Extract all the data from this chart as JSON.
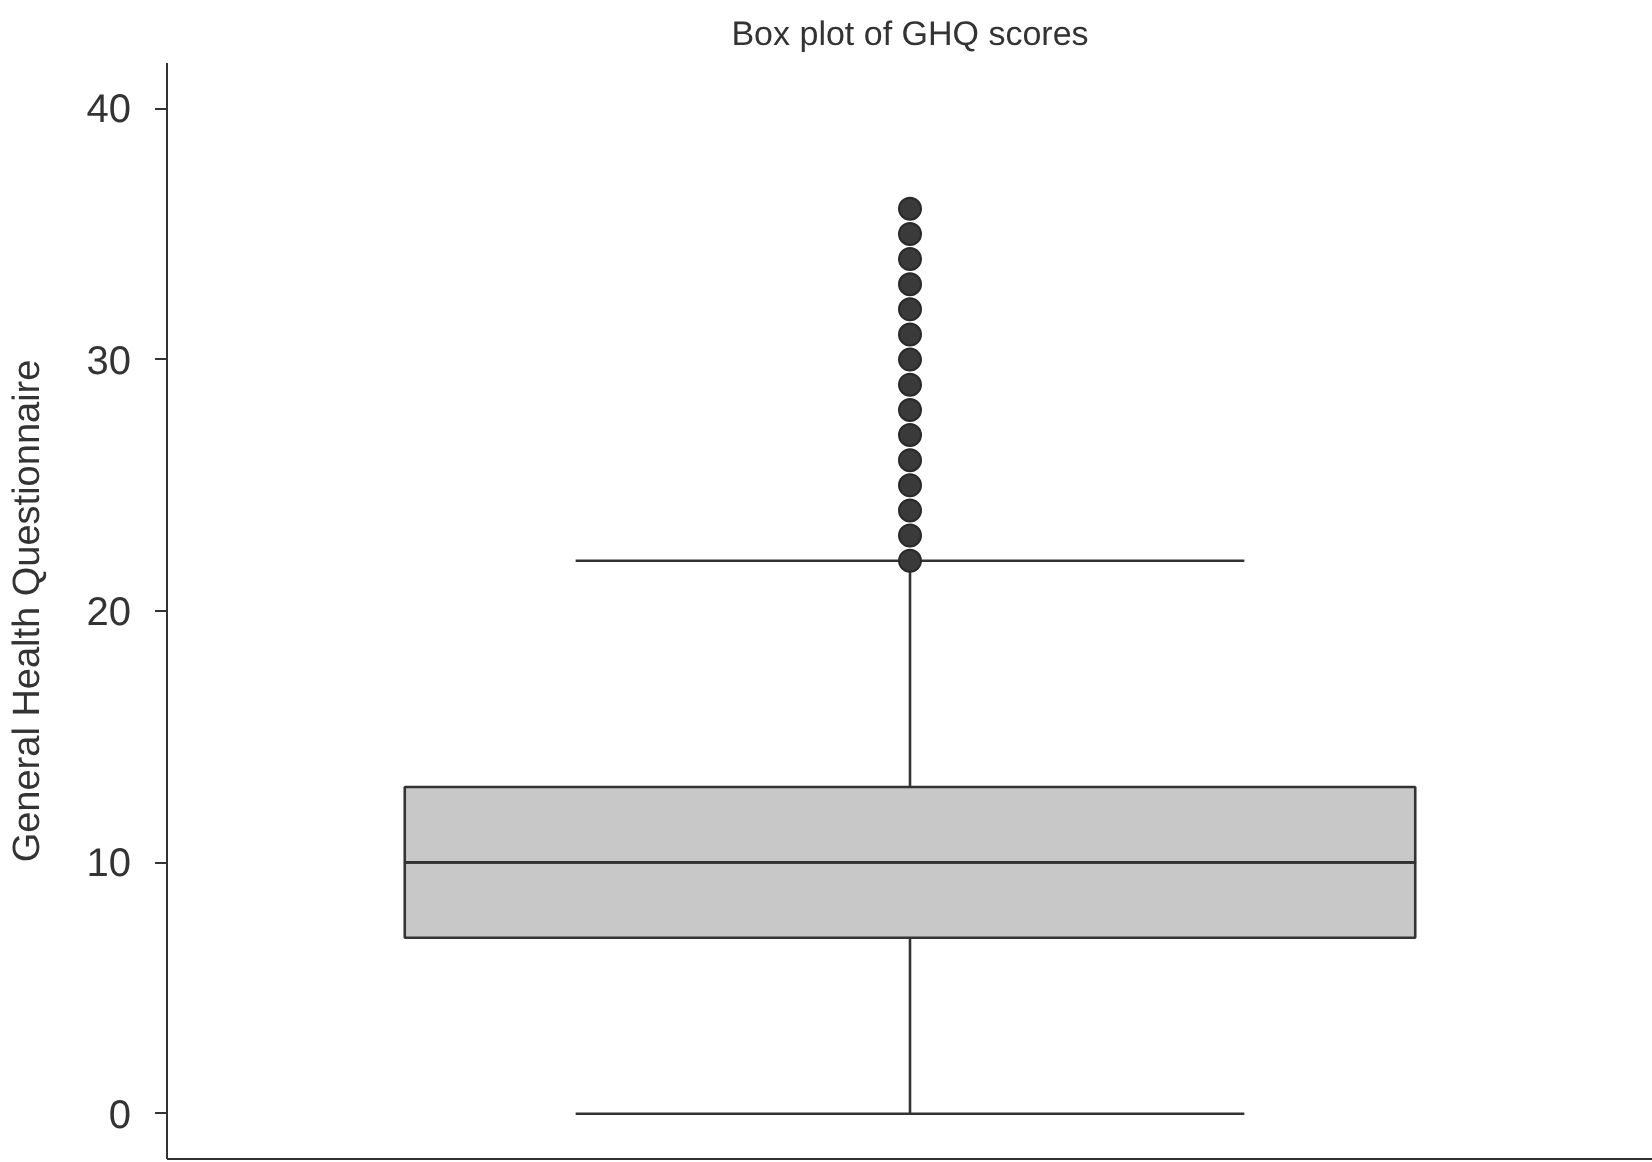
{
  "chart_data": {
    "type": "box",
    "title": "Box plot of GHQ scores",
    "ylabel": "General Health Questionnaire",
    "categories": [
      null
    ],
    "series": [
      {
        "color": "#c8c8c8",
        "boxes": [
          {
            "low": 0,
            "q1": 7,
            "median": 10,
            "q3": 13,
            "high": 22,
            "outliers": [
              22,
              23,
              24,
              25,
              26,
              27,
              28,
              29,
              30,
              31,
              32,
              33,
              34,
              35,
              36
            ]
          }
        ]
      }
    ],
    "ylim": [
      -1.8,
      41.8
    ],
    "yticks": [
      0,
      10,
      20,
      30,
      40
    ],
    "grid": false,
    "tick_labels": "y"
  }
}
